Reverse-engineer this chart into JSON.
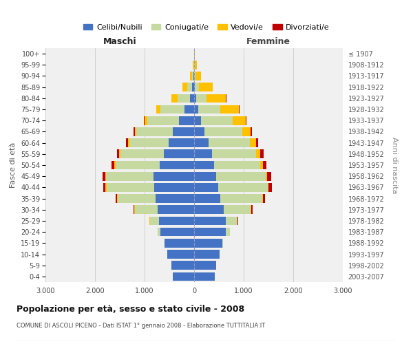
{
  "age_groups": [
    "0-4",
    "5-9",
    "10-14",
    "15-19",
    "20-24",
    "25-29",
    "30-34",
    "35-39",
    "40-44",
    "45-49",
    "50-54",
    "55-59",
    "60-64",
    "65-69",
    "70-74",
    "75-79",
    "80-84",
    "85-89",
    "90-94",
    "95-99",
    "100+"
  ],
  "birth_years": [
    "2003-2007",
    "1998-2002",
    "1993-1997",
    "1988-1992",
    "1983-1987",
    "1978-1982",
    "1973-1977",
    "1968-1972",
    "1963-1967",
    "1958-1962",
    "1953-1957",
    "1948-1952",
    "1943-1947",
    "1938-1942",
    "1933-1937",
    "1928-1932",
    "1923-1927",
    "1918-1922",
    "1913-1917",
    "1908-1912",
    "≤ 1907"
  ],
  "male_celibo": [
    430,
    465,
    535,
    595,
    675,
    710,
    730,
    780,
    800,
    820,
    690,
    610,
    510,
    430,
    310,
    190,
    85,
    40,
    12,
    5,
    1
  ],
  "male_coniug": [
    0,
    0,
    0,
    8,
    55,
    185,
    470,
    760,
    970,
    960,
    900,
    870,
    800,
    730,
    640,
    490,
    255,
    105,
    30,
    7,
    1
  ],
  "male_vedovi": [
    0,
    0,
    0,
    0,
    0,
    4,
    8,
    12,
    15,
    18,
    22,
    28,
    28,
    38,
    52,
    82,
    120,
    92,
    44,
    16,
    4
  ],
  "male_divor": [
    0,
    0,
    0,
    0,
    4,
    8,
    18,
    32,
    50,
    55,
    50,
    42,
    32,
    22,
    12,
    8,
    4,
    2,
    1,
    0,
    0
  ],
  "fem_celibo": [
    410,
    445,
    510,
    565,
    645,
    640,
    600,
    530,
    480,
    450,
    400,
    355,
    285,
    215,
    140,
    80,
    38,
    18,
    6,
    2,
    1
  ],
  "fem_coniug": [
    0,
    0,
    0,
    12,
    75,
    230,
    545,
    840,
    1000,
    990,
    940,
    900,
    840,
    760,
    640,
    450,
    215,
    80,
    22,
    6,
    1
  ],
  "fem_vedovi": [
    0,
    0,
    0,
    0,
    4,
    8,
    12,
    16,
    26,
    36,
    55,
    82,
    120,
    165,
    260,
    375,
    390,
    280,
    115,
    42,
    12
  ],
  "fem_divor": [
    0,
    0,
    0,
    0,
    4,
    12,
    26,
    40,
    65,
    75,
    70,
    60,
    45,
    30,
    16,
    10,
    4,
    2,
    1,
    0,
    0
  ],
  "colors": {
    "celibo": "#4472c4",
    "coniug": "#c5d9a0",
    "vedovi": "#ffc000",
    "divor": "#c00000"
  },
  "title": "Popolazione per età, sesso e stato civile - 2008",
  "subtitle": "COMUNE DI ASCOLI PICENO - Dati ISTAT 1° gennaio 2008 - Elaborazione TUTTITALIA.IT",
  "xlabel_left": "Maschi",
  "xlabel_right": "Femmine",
  "ylabel_left": "Fasce di età",
  "ylabel_right": "Anni di nascita",
  "xlim": 3000,
  "bg_color": "#f0f0f0",
  "grid_color": "#cccccc"
}
